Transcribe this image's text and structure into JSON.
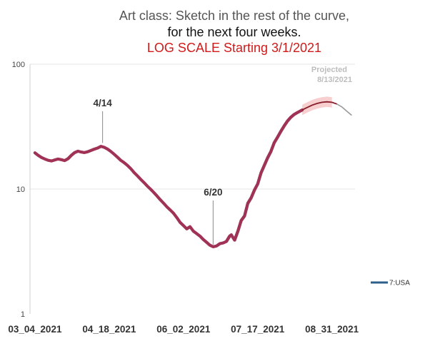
{
  "chart_data": {
    "type": "line",
    "title_lines": [
      "Art class:  Sketch in the rest of the curve,",
      "for the next four weeks.",
      "LOG SCALE Starting 3/1/2021"
    ],
    "y_scale": "log",
    "ylim": [
      1,
      100
    ],
    "y_ticks": [
      "1",
      "10",
      "100"
    ],
    "x_ticks": [
      "03_04_2021",
      "04_18_2021",
      "06_02_2021",
      "07_17_2021",
      "08_31_2021"
    ],
    "xlim": [
      "2021-03-01",
      "2021-09-14"
    ],
    "grid": true,
    "legend": {
      "position": "right",
      "entries": [
        "7:USA"
      ]
    },
    "projection_label": "Projected",
    "projection_date": "8/13/2021",
    "colors": {
      "main_line": "#a03355",
      "projection_line": "#9a9a9a",
      "projection_band": "#f0a8a8",
      "legend_line": "#2e5f8a",
      "grid": "#e6e6e6"
    },
    "annotations": [
      {
        "label": "4/14",
        "date": "2021-04-14",
        "value": 22.5
      },
      {
        "label": "6/20",
        "date": "2021-06-20",
        "value": 3.45
      }
    ],
    "series": [
      {
        "name": "7:USA",
        "points": [
          [
            "2021-03-04",
            19.5
          ],
          [
            "2021-03-06",
            18.6
          ],
          [
            "2021-03-08",
            17.9
          ],
          [
            "2021-03-10",
            17.4
          ],
          [
            "2021-03-12",
            17.0
          ],
          [
            "2021-03-14",
            16.8
          ],
          [
            "2021-03-16",
            17.1
          ],
          [
            "2021-03-18",
            17.4
          ],
          [
            "2021-03-20",
            17.2
          ],
          [
            "2021-03-22",
            16.9
          ],
          [
            "2021-03-24",
            17.5
          ],
          [
            "2021-03-26",
            18.6
          ],
          [
            "2021-03-28",
            19.6
          ],
          [
            "2021-03-30",
            20.1
          ],
          [
            "2021-04-01",
            19.8
          ],
          [
            "2021-04-03",
            19.6
          ],
          [
            "2021-04-05",
            19.9
          ],
          [
            "2021-04-07",
            20.4
          ],
          [
            "2021-04-09",
            20.9
          ],
          [
            "2021-04-11",
            21.3
          ],
          [
            "2021-04-13",
            22.0
          ],
          [
            "2021-04-15",
            21.6
          ],
          [
            "2021-04-17",
            20.9
          ],
          [
            "2021-04-19",
            20.0
          ],
          [
            "2021-04-21",
            19.0
          ],
          [
            "2021-04-23",
            18.0
          ],
          [
            "2021-04-25",
            17.0
          ],
          [
            "2021-04-27",
            16.3
          ],
          [
            "2021-04-29",
            15.5
          ],
          [
            "2021-05-01",
            14.6
          ],
          [
            "2021-05-03",
            13.6
          ],
          [
            "2021-05-05",
            12.8
          ],
          [
            "2021-05-07",
            12.0
          ],
          [
            "2021-05-09",
            11.3
          ],
          [
            "2021-05-11",
            10.6
          ],
          [
            "2021-05-13",
            10.0
          ],
          [
            "2021-05-15",
            9.4
          ],
          [
            "2021-05-17",
            8.8
          ],
          [
            "2021-05-19",
            8.2
          ],
          [
            "2021-05-21",
            7.7
          ],
          [
            "2021-05-23",
            7.2
          ],
          [
            "2021-05-25",
            6.8
          ],
          [
            "2021-05-27",
            6.4
          ],
          [
            "2021-05-29",
            5.9
          ],
          [
            "2021-05-31",
            5.4
          ],
          [
            "2021-06-02",
            5.1
          ],
          [
            "2021-06-04",
            4.8
          ],
          [
            "2021-06-05",
            4.9
          ],
          [
            "2021-06-06",
            5.0
          ],
          [
            "2021-06-08",
            4.6
          ],
          [
            "2021-06-10",
            4.4
          ],
          [
            "2021-06-12",
            4.2
          ],
          [
            "2021-06-14",
            3.95
          ],
          [
            "2021-06-16",
            3.75
          ],
          [
            "2021-06-18",
            3.55
          ],
          [
            "2021-06-20",
            3.45
          ],
          [
            "2021-06-22",
            3.5
          ],
          [
            "2021-06-24",
            3.65
          ],
          [
            "2021-06-26",
            3.7
          ],
          [
            "2021-06-28",
            3.8
          ],
          [
            "2021-06-30",
            4.2
          ],
          [
            "2021-07-01",
            4.3
          ],
          [
            "2021-07-03",
            3.9
          ],
          [
            "2021-07-05",
            4.6
          ],
          [
            "2021-07-07",
            5.6
          ],
          [
            "2021-07-09",
            6.1
          ],
          [
            "2021-07-11",
            7.7
          ],
          [
            "2021-07-13",
            8.5
          ],
          [
            "2021-07-15",
            9.8
          ],
          [
            "2021-07-17",
            11.0
          ],
          [
            "2021-07-19",
            13.5
          ],
          [
            "2021-07-21",
            15.5
          ],
          [
            "2021-07-23",
            17.8
          ],
          [
            "2021-07-25",
            20.0
          ],
          [
            "2021-07-27",
            23.5
          ],
          [
            "2021-07-29",
            26.0
          ],
          [
            "2021-07-31",
            29.0
          ],
          [
            "2021-08-02",
            32.0
          ],
          [
            "2021-08-04",
            35.0
          ],
          [
            "2021-08-06",
            37.5
          ],
          [
            "2021-08-08",
            39.5
          ],
          [
            "2021-08-10",
            41.0
          ],
          [
            "2021-08-13",
            43.0
          ]
        ]
      },
      {
        "name": "",
        "style": "projection",
        "points": [
          [
            "2021-08-13",
            43.0
          ],
          [
            "2021-08-16",
            45.0
          ],
          [
            "2021-08-19",
            47.0
          ],
          [
            "2021-08-22",
            48.5
          ],
          [
            "2021-08-25",
            49.5
          ],
          [
            "2021-08-28",
            50.0
          ],
          [
            "2021-08-31",
            49.5
          ],
          [
            "2021-09-03",
            48.0
          ],
          [
            "2021-09-06",
            45.5
          ],
          [
            "2021-09-09",
            42.0
          ],
          [
            "2021-09-12",
            39.0
          ]
        ]
      }
    ]
  }
}
